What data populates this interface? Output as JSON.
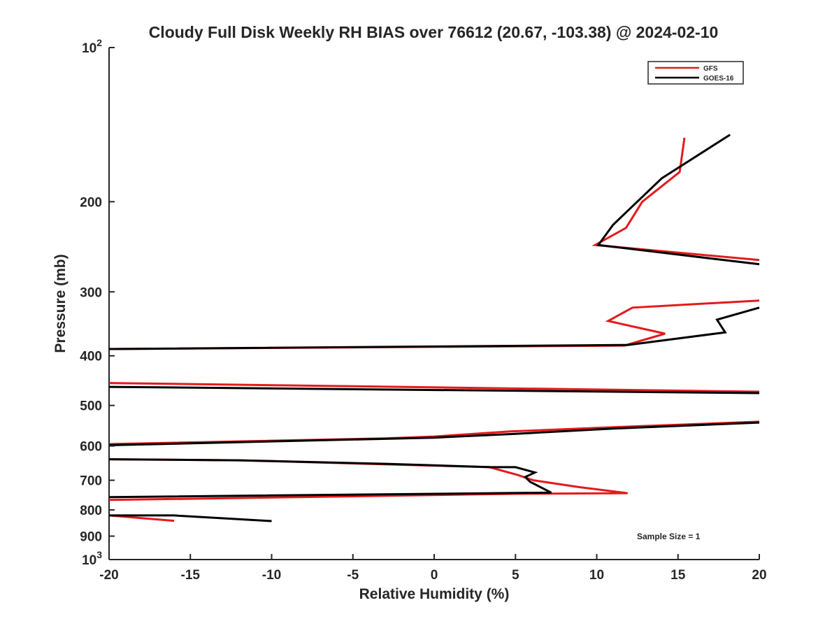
{
  "chart_data": {
    "type": "line",
    "title": "Cloudy Full Disk Weekly RH BIAS over 76612 (20.67, -103.38) @ 2024-02-10",
    "xlabel": "Relative Humidity (%)",
    "ylabel": "Pressure (mb)",
    "xlim": [
      -20,
      20
    ],
    "ylim": [
      100,
      1000
    ],
    "y_scale": "log",
    "y_reversed": true,
    "grid": false,
    "legend_position": "top-right",
    "x_ticks": [
      {
        "value": -20,
        "label": "-20"
      },
      {
        "value": -15,
        "label": "-15"
      },
      {
        "value": -10,
        "label": "-10"
      },
      {
        "value": -5,
        "label": "-5"
      },
      {
        "value": 0,
        "label": "0"
      },
      {
        "value": 5,
        "label": "5"
      },
      {
        "value": 10,
        "label": "10"
      },
      {
        "value": 15,
        "label": "15"
      },
      {
        "value": 20,
        "label": "20"
      }
    ],
    "y_ticks": [
      {
        "value": 100,
        "label": "10",
        "sup": "2"
      },
      {
        "value": 200,
        "label": "200"
      },
      {
        "value": 300,
        "label": "300"
      },
      {
        "value": 400,
        "label": "400"
      },
      {
        "value": 500,
        "label": "500"
      },
      {
        "value": 600,
        "label": "600"
      },
      {
        "value": 700,
        "label": "700"
      },
      {
        "value": 800,
        "label": "800"
      },
      {
        "value": 900,
        "label": "900"
      },
      {
        "value": 1000,
        "label": "10",
        "sup": "3"
      }
    ],
    "annotation": "Sample Size = 1",
    "series": [
      {
        "name": "GFS",
        "color": "#e41a1c",
        "segments": [
          [
            [
              15.4,
              150
            ],
            [
              15.1,
              175
            ],
            [
              12.8,
              200
            ],
            [
              11.8,
              225
            ],
            [
              9.9,
              243
            ],
            [
              20,
              260
            ]
          ],
          [
            [
              20,
              312
            ],
            [
              12.2,
              322
            ],
            [
              10.7,
              342
            ],
            [
              14.2,
              362
            ],
            [
              11.7,
              382
            ],
            [
              -20,
              388
            ]
          ],
          [
            [
              -20,
              452
            ],
            [
              20,
              470
            ]
          ],
          [
            [
              20,
              538
            ],
            [
              12.0,
              550
            ],
            [
              4.7,
              562
            ],
            [
              0.0,
              575
            ],
            [
              -3.0,
              580
            ],
            [
              -20,
              595
            ]
          ],
          [
            [
              -20,
              637
            ],
            [
              -12.0,
              640
            ],
            [
              3.4,
              660
            ],
            [
              5.1,
              683
            ],
            [
              6.1,
              700
            ],
            [
              8.9,
              722
            ],
            [
              11.9,
              742
            ],
            [
              5.0,
              744
            ],
            [
              -20,
              765
            ]
          ],
          [
            [
              -20,
              820
            ],
            [
              -16.0,
              840
            ]
          ]
        ]
      },
      {
        "name": "GOES-16",
        "color": "#000000",
        "segments": [
          [
            [
              18.2,
              148
            ],
            [
              14.0,
              180
            ],
            [
              11.0,
              222
            ],
            [
              10.1,
              243
            ],
            [
              20,
              265
            ]
          ],
          [
            [
              20,
              322
            ],
            [
              17.4,
              340
            ],
            [
              17.9,
              360
            ],
            [
              11.9,
              381
            ],
            [
              -20,
              388
            ]
          ],
          [
            [
              -20,
              460
            ],
            [
              20,
              473
            ]
          ],
          [
            [
              20,
              540
            ],
            [
              11.0,
              555
            ],
            [
              5.0,
              568
            ],
            [
              0.0,
              578
            ],
            [
              -20,
              598
            ]
          ],
          [
            [
              -20,
              637
            ],
            [
              -12.0,
              640
            ],
            [
              -3.0,
              650
            ],
            [
              3.5,
              660
            ],
            [
              5.0,
              660
            ],
            [
              6.2,
              676
            ],
            [
              5.6,
              690
            ],
            [
              5.9,
              705
            ],
            [
              7.2,
              740
            ],
            [
              -20,
              755
            ]
          ],
          [
            [
              -20,
              820
            ],
            [
              -16.0,
              820
            ],
            [
              -10.0,
              841
            ]
          ]
        ]
      }
    ]
  }
}
